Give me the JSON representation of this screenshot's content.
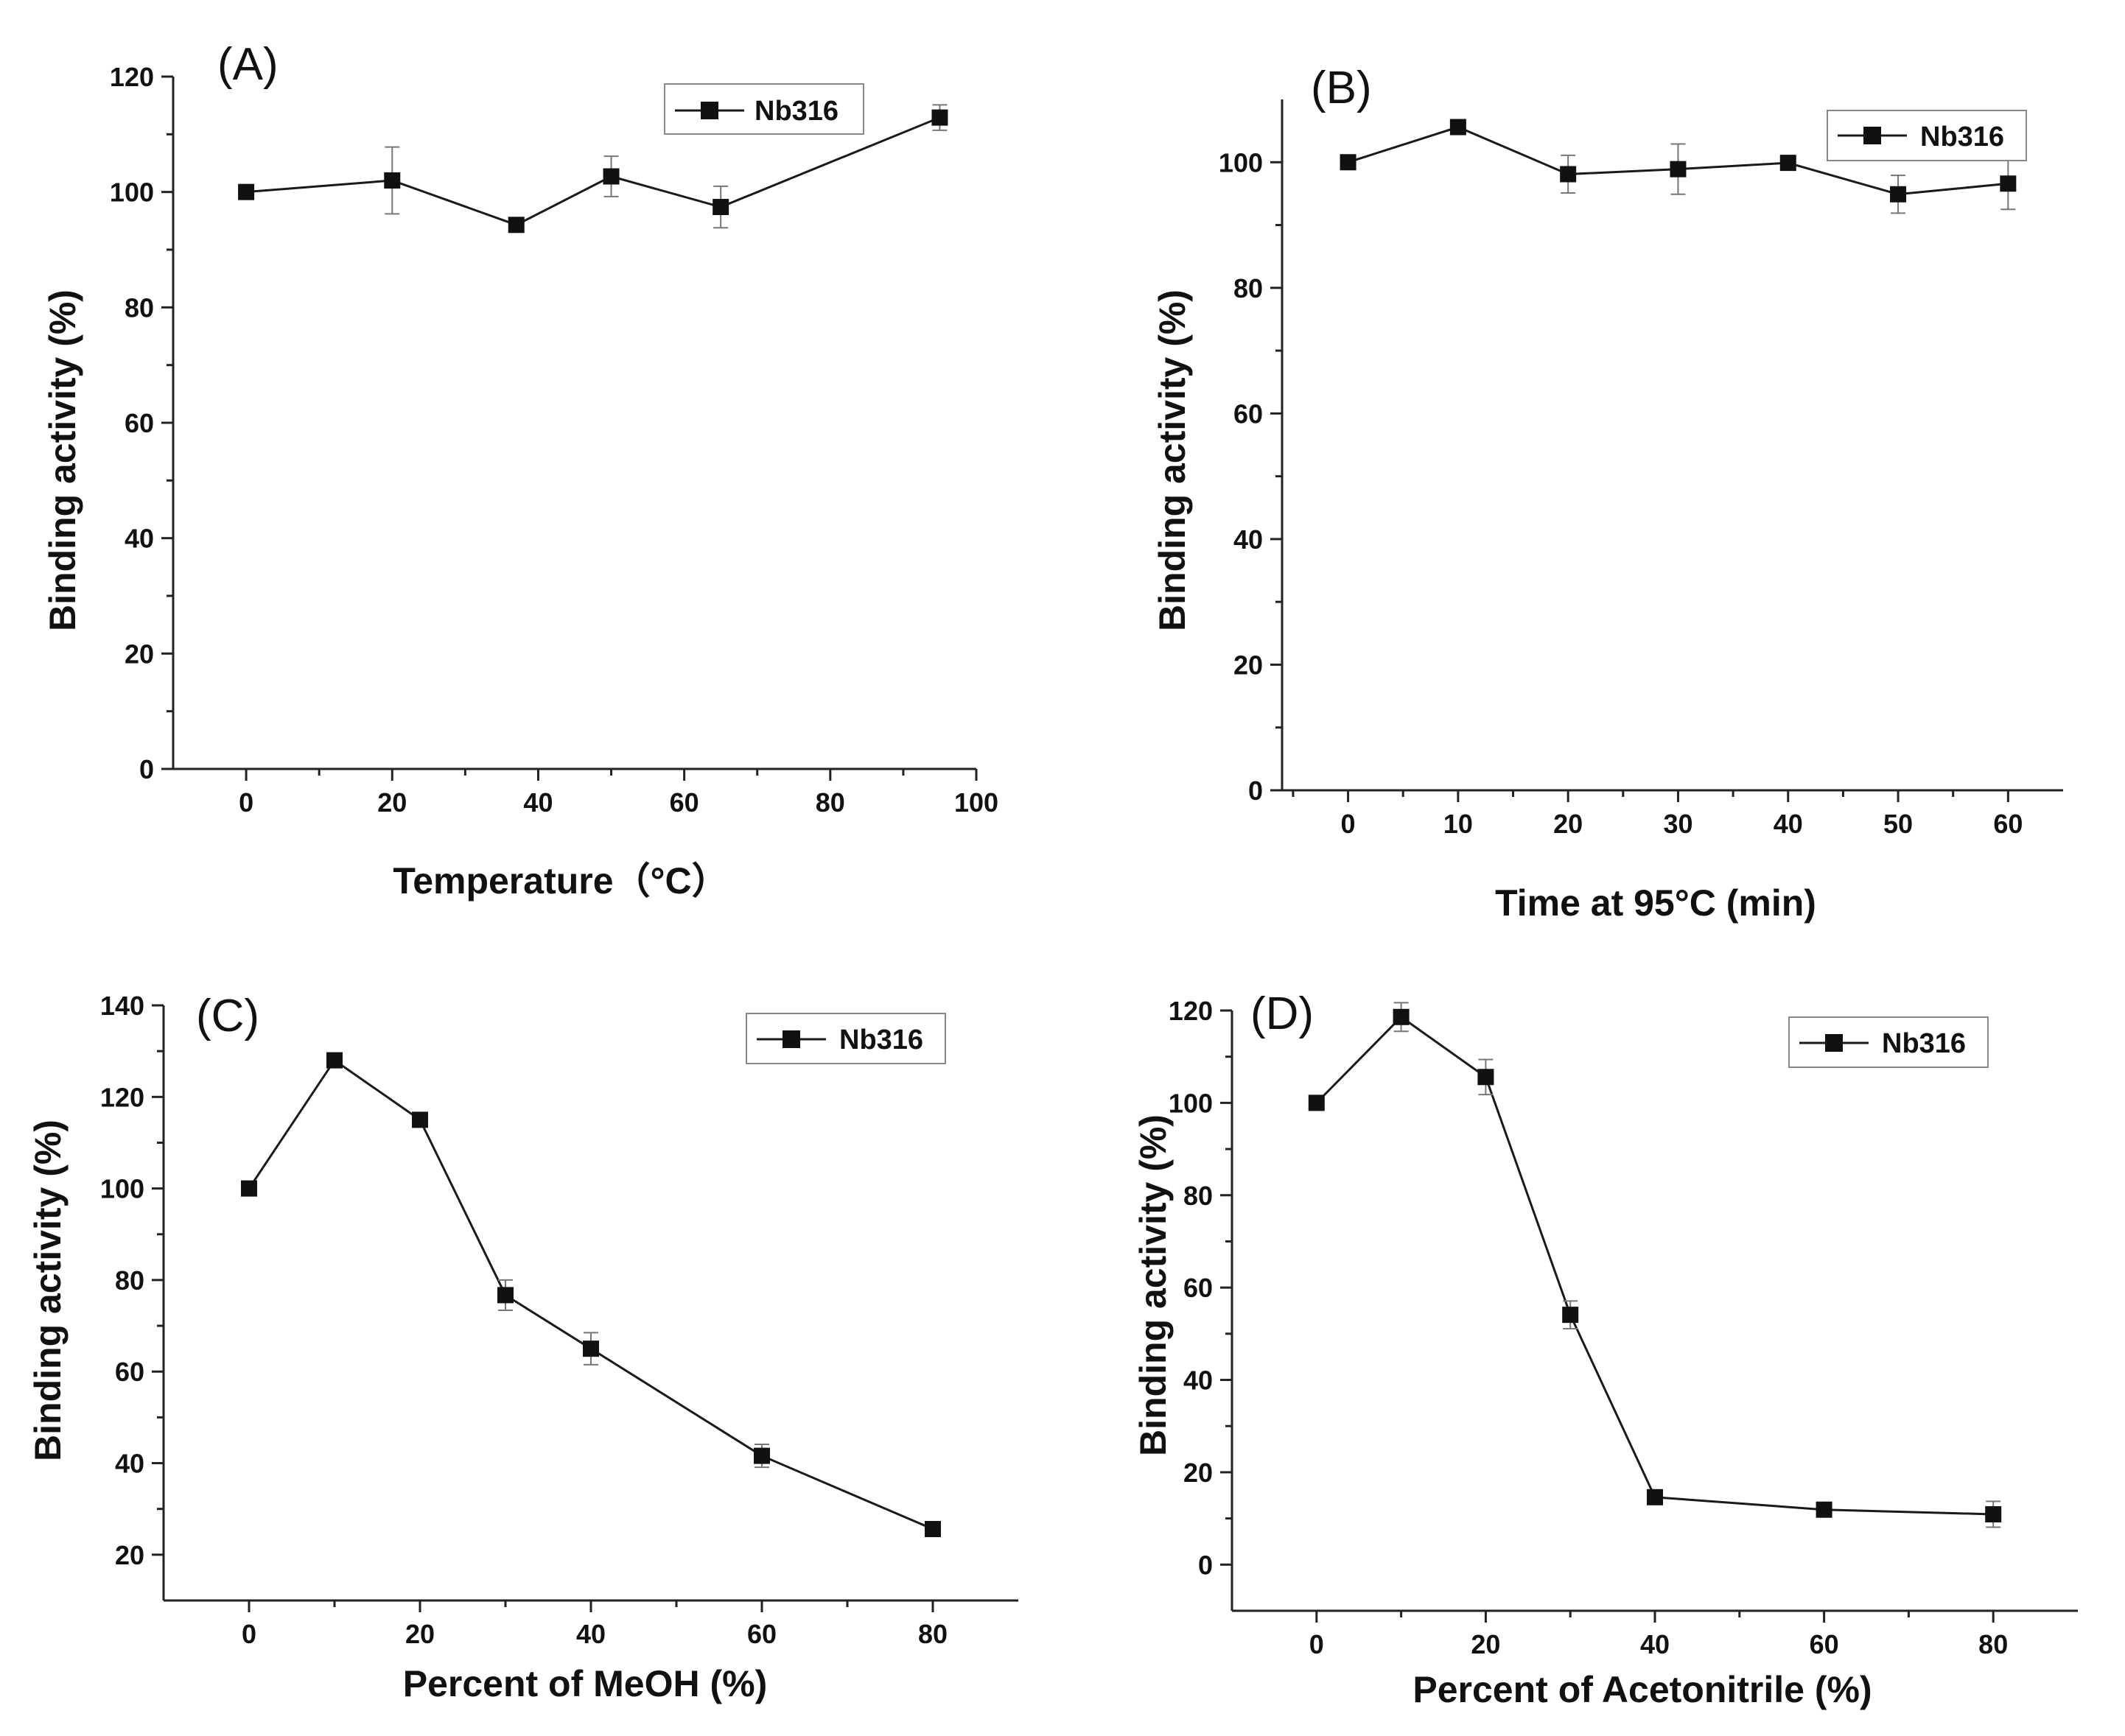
{
  "colors": {
    "line": "#1a1a1a",
    "marker": "#111111",
    "error_bar": "#777777",
    "axis": "#222222",
    "legend_border": "#888888"
  },
  "chart_data": [
    {
      "type": "line",
      "panel_label": "(A)",
      "xlabel": "Temperature（°C）",
      "ylabel": "Binding activity (%)",
      "xlim": [
        -10,
        100
      ],
      "ylim": [
        0,
        120
      ],
      "xticks": [
        0,
        20,
        40,
        60,
        80,
        100
      ],
      "yticks": [
        0,
        20,
        40,
        60,
        80,
        100,
        120
      ],
      "legend": "top-right",
      "series": [
        {
          "name": "Nb316",
          "x": [
            0,
            20,
            37,
            50,
            65,
            95
          ],
          "y": [
            100,
            102,
            94.3,
            102.7,
            97.4,
            112.9
          ],
          "err": [
            0,
            5.8,
            0.5,
            3.5,
            3.6,
            2.2
          ]
        }
      ]
    },
    {
      "type": "line",
      "panel_label": "(B)",
      "xlabel": "Time at 95°C (min)",
      "ylabel": "Binding activity (%)",
      "xlim": [
        -6,
        65
      ],
      "ylim": [
        0,
        110
      ],
      "xticks": [
        0,
        10,
        20,
        30,
        40,
        50,
        60
      ],
      "yticks": [
        0,
        20,
        40,
        60,
        80,
        100
      ],
      "legend": "top-right",
      "series": [
        {
          "name": "Nb316",
          "x": [
            0,
            10,
            20,
            30,
            40,
            50,
            60
          ],
          "y": [
            100,
            105.6,
            98.1,
            98.9,
            99.9,
            94.9,
            96.6
          ],
          "err": [
            0,
            0.5,
            3.0,
            4.0,
            0.5,
            3.0,
            4.1
          ]
        }
      ]
    },
    {
      "type": "line",
      "panel_label": "(C)",
      "xlabel": "Percent of MeOH (%)",
      "ylabel": "Binding activity (%)",
      "xlim": [
        -10,
        90
      ],
      "ylim": [
        10,
        140
      ],
      "xticks": [
        0,
        20,
        40,
        60,
        80
      ],
      "yticks": [
        20,
        40,
        60,
        80,
        100,
        120,
        140
      ],
      "legend": "top-right",
      "series": [
        {
          "name": "Nb316",
          "x": [
            0,
            10,
            20,
            30,
            40,
            60,
            80
          ],
          "y": [
            100,
            128,
            115,
            76.7,
            65,
            41.6,
            25.6
          ],
          "err": [
            0,
            0.5,
            0.5,
            3.3,
            3.5,
            2.5,
            0.5
          ]
        }
      ]
    },
    {
      "type": "line",
      "panel_label": "(D)",
      "xlabel": "Percent of Acetonitrile (%)",
      "ylabel": "Binding activity (%)",
      "xlim": [
        -10,
        90
      ],
      "ylim": [
        -10,
        120
      ],
      "xticks": [
        0,
        20,
        40,
        60,
        80
      ],
      "yticks": [
        0,
        20,
        40,
        60,
        80,
        100,
        120
      ],
      "legend": "top-right",
      "series": [
        {
          "name": "Nb316",
          "x": [
            0,
            10,
            20,
            30,
            40,
            60,
            80
          ],
          "y": [
            100,
            118.6,
            105.6,
            54.1,
            14.6,
            11.9,
            10.9
          ],
          "err": [
            0,
            3.1,
            3.8,
            3.0,
            0.5,
            0.5,
            2.8
          ]
        }
      ]
    }
  ]
}
